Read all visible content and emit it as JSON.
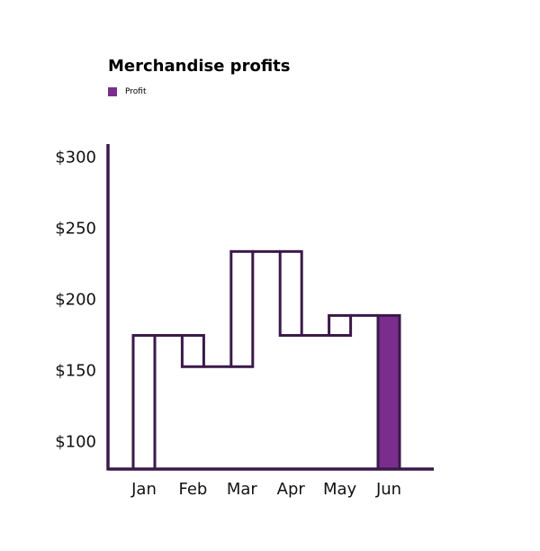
{
  "chart_data": {
    "type": "bar",
    "subtype": "waterfall",
    "title": "Merchandise profits",
    "legend": [
      {
        "label": "Profit",
        "color": "#7b2d8e"
      }
    ],
    "legend_placement": "top-left",
    "categories": [
      "Jan",
      "Feb",
      "Mar",
      "Apr",
      "May",
      "Jun"
    ],
    "steps": [
      {
        "category": "Jan",
        "from": 80,
        "to": 174,
        "kind": "increase"
      },
      {
        "category": "Feb",
        "from": 174,
        "to": 152,
        "kind": "decrease"
      },
      {
        "category": "Mar",
        "from": 152,
        "to": 233,
        "kind": "increase"
      },
      {
        "category": "Apr",
        "from": 233,
        "to": 174,
        "kind": "decrease"
      },
      {
        "category": "May",
        "from": 174,
        "to": 188,
        "kind": "increase"
      },
      {
        "category": "Jun",
        "from": 80,
        "to": 188,
        "kind": "total"
      }
    ],
    "ylim": [
      80,
      310
    ],
    "yticks": [
      100,
      150,
      200,
      250,
      300
    ],
    "ytick_labels": [
      "$100",
      "$150",
      "$200",
      "$250",
      "$300"
    ],
    "grid": false,
    "colors": {
      "outline": "#3a1a4a",
      "total_fill": "#7b2d8e",
      "bar_fill": "#ffffff"
    }
  }
}
